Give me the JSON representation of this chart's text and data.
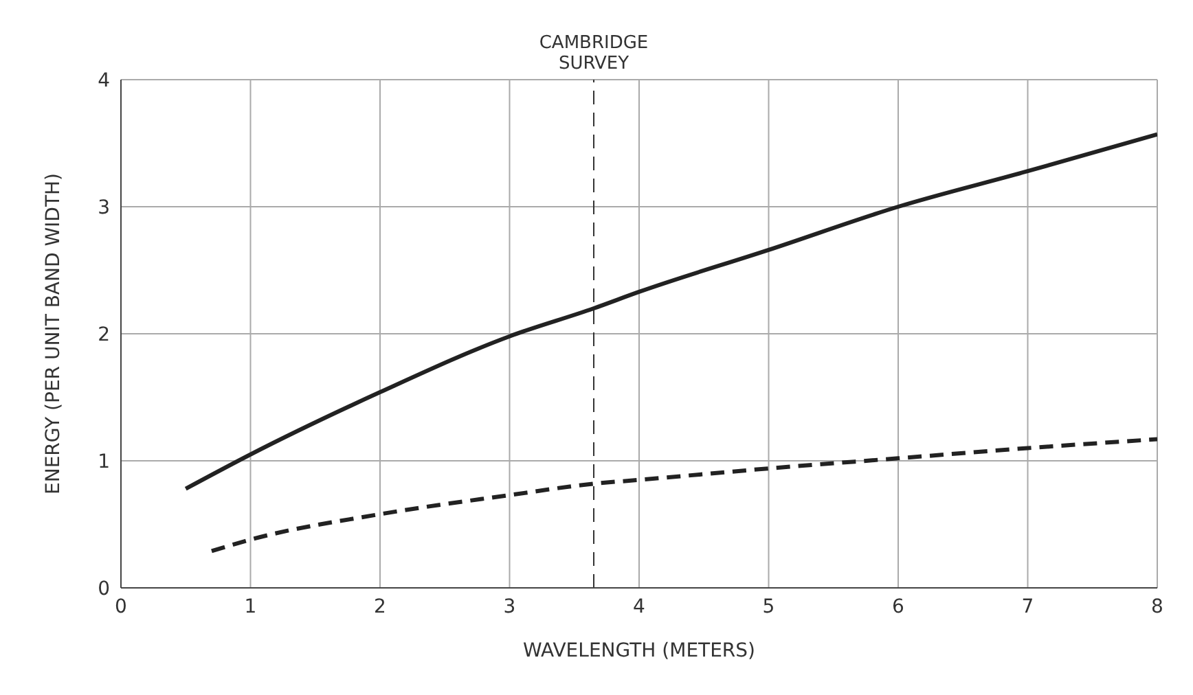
{
  "chart_data": {
    "type": "line",
    "xlabel": "WAVELENGTH (METERS)",
    "ylabel": "ENERGY (PER UNIT BAND WIDTH)",
    "series": [
      {
        "color": "#222222",
        "line_style": "solid",
        "x": [
          0.5,
          1,
          2,
          3,
          3.65,
          4,
          5,
          6,
          7,
          8
        ],
        "values": [
          0.78,
          1.05,
          1.54,
          1.98,
          2.2,
          2.33,
          2.66,
          3.0,
          3.28,
          3.57
        ]
      },
      {
        "color": "#222222",
        "line_style": "dashed",
        "x": [
          0.7,
          1,
          2,
          3,
          3.65,
          4,
          5,
          6,
          7,
          8
        ],
        "values": [
          0.29,
          0.38,
          0.58,
          0.73,
          0.82,
          0.85,
          0.94,
          1.02,
          1.1,
          1.17
        ]
      }
    ],
    "xlim": [
      0,
      8
    ],
    "xticks": [
      0,
      1,
      2,
      3,
      4,
      5,
      6,
      7,
      8
    ],
    "ylim": [
      0,
      4
    ],
    "yticks": [
      0,
      1,
      2,
      3,
      4
    ],
    "grid": true,
    "marker": "none",
    "ref_lines": [
      {
        "axis": "x",
        "value": 3.65,
        "label": "CAMBRIDGE SURVEY",
        "line_style": "dashed"
      }
    ]
  }
}
